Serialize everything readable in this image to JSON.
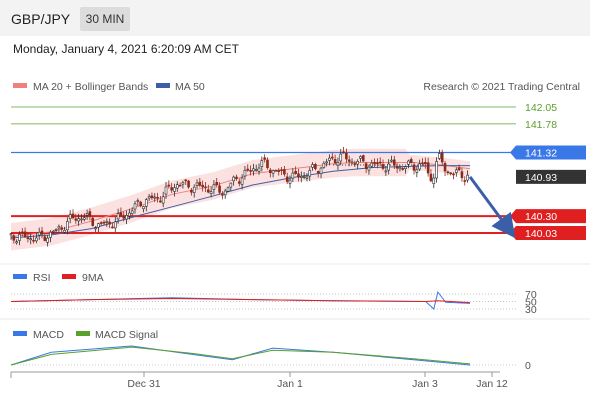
{
  "header": {
    "pair": "GBP/JPY",
    "timeframe": "30 MIN",
    "datetime": "Monday, January 4, 2021 6:20:09 AM CET"
  },
  "legend": {
    "ma20": "MA 20 + Bollinger Bands",
    "ma50": "MA 50",
    "credit": "Research © 2021 Trading Central"
  },
  "colors": {
    "ma20": "#f08080",
    "ma50": "#3a5fa8",
    "target": "#5aa02c",
    "pivot": "#3b78e7",
    "support": "#e02020",
    "price": "#333333"
  },
  "price_levels": [
    {
      "value": "142.05",
      "kind": "target"
    },
    {
      "value": "141.78",
      "kind": "target"
    },
    {
      "value": "141.32",
      "kind": "pivot"
    },
    {
      "value": "140.93",
      "kind": "price"
    },
    {
      "value": "140.30",
      "kind": "support"
    },
    {
      "value": "140.03",
      "kind": "support"
    }
  ],
  "rsi_panel": {
    "label": "RSI",
    "ma_label": "9MA",
    "ticks": [
      "70",
      "50",
      "30"
    ]
  },
  "macd_panel": {
    "label": "MACD",
    "signal_label": "MACD Signal",
    "tick": "0"
  },
  "x_axis": {
    "labels": [
      "Dec 31",
      "Jan 1",
      "Jan 3",
      "Jan 12"
    ]
  },
  "chart_data": {
    "type": "candlestick",
    "symbol": "GBP/JPY",
    "interval": "30 MIN",
    "x_ticks": [
      "Dec 31",
      "Jan 1",
      "Jan 3",
      "Jan 12"
    ],
    "ylim": [
      139.85,
      142.2
    ],
    "levels": [
      142.05,
      141.78,
      141.32,
      140.93,
      140.3,
      140.03
    ],
    "last_price": 140.93,
    "forecast": {
      "from": 140.93,
      "to": 140.03,
      "direction": "down"
    },
    "close_path": [
      [
        0,
        139.98
      ],
      [
        14,
        139.95
      ],
      [
        22,
        140.05
      ],
      [
        30,
        140.25
      ],
      [
        36,
        140.3
      ],
      [
        44,
        140.15
      ],
      [
        52,
        140.22
      ],
      [
        60,
        140.4
      ],
      [
        66,
        140.55
      ],
      [
        74,
        140.6
      ],
      [
        82,
        140.82
      ],
      [
        90,
        140.78
      ],
      [
        98,
        140.75
      ],
      [
        106,
        140.7
      ],
      [
        112,
        140.9
      ],
      [
        118,
        141.0
      ],
      [
        124,
        141.15
      ],
      [
        130,
        141.05
      ],
      [
        136,
        140.95
      ],
      [
        142,
        140.92
      ],
      [
        148,
        141.0
      ],
      [
        154,
        141.1
      ],
      [
        160,
        141.22
      ],
      [
        164,
        141.25
      ],
      [
        168,
        141.2
      ],
      [
        180,
        141.12
      ],
      [
        196,
        141.1
      ],
      [
        206,
        141.12
      ],
      [
        208,
        140.85
      ],
      [
        210,
        141.0
      ],
      [
        212,
        141.25
      ],
      [
        214,
        141.15
      ],
      [
        216,
        141.05
      ],
      [
        220,
        140.98
      ],
      [
        224,
        140.97
      ],
      [
        228,
        140.93
      ]
    ],
    "ma20_path": [
      [
        0,
        139.97
      ],
      [
        20,
        140.05
      ],
      [
        40,
        140.22
      ],
      [
        60,
        140.42
      ],
      [
        80,
        140.65
      ],
      [
        100,
        140.78
      ],
      [
        120,
        140.98
      ],
      [
        140,
        141.06
      ],
      [
        160,
        141.14
      ],
      [
        170,
        141.16
      ],
      [
        200,
        141.16
      ],
      [
        214,
        141.12
      ],
      [
        228,
        141.06
      ]
    ],
    "ma50_path": [
      [
        0,
        139.95
      ],
      [
        20,
        140.0
      ],
      [
        40,
        140.1
      ],
      [
        60,
        140.28
      ],
      [
        80,
        140.45
      ],
      [
        100,
        140.62
      ],
      [
        120,
        140.8
      ],
      [
        140,
        140.92
      ],
      [
        160,
        141.02
      ],
      [
        180,
        141.08
      ],
      [
        200,
        141.1
      ],
      [
        214,
        141.11
      ],
      [
        228,
        141.11
      ]
    ],
    "rsi": {
      "ticks": [
        70,
        50,
        30
      ],
      "ylim": [
        20,
        80
      ],
      "values": [
        [
          0,
          50
        ],
        [
          40,
          55
        ],
        [
          80,
          60
        ],
        [
          120,
          55
        ],
        [
          160,
          52
        ],
        [
          206,
          50
        ],
        [
          210,
          30
        ],
        [
          212,
          75
        ],
        [
          216,
          48
        ],
        [
          228,
          45
        ]
      ],
      "ma9": [
        [
          0,
          50
        ],
        [
          40,
          55
        ],
        [
          80,
          58
        ],
        [
          120,
          55
        ],
        [
          160,
          52
        ],
        [
          206,
          50
        ],
        [
          212,
          52
        ],
        [
          228,
          47
        ]
      ]
    },
    "macd": {
      "zero": 0,
      "ylim": [
        -0.15,
        0.25
      ],
      "macd": [
        [
          0,
          0.0
        ],
        [
          20,
          0.12
        ],
        [
          60,
          0.18
        ],
        [
          90,
          0.1
        ],
        [
          110,
          0.05
        ],
        [
          130,
          0.16
        ],
        [
          160,
          0.12
        ],
        [
          200,
          0.05
        ],
        [
          228,
          0.0
        ]
      ],
      "signal": [
        [
          0,
          0.0
        ],
        [
          20,
          0.1
        ],
        [
          60,
          0.17
        ],
        [
          90,
          0.11
        ],
        [
          110,
          0.06
        ],
        [
          130,
          0.14
        ],
        [
          160,
          0.12
        ],
        [
          200,
          0.06
        ],
        [
          228,
          0.01
        ]
      ]
    }
  }
}
